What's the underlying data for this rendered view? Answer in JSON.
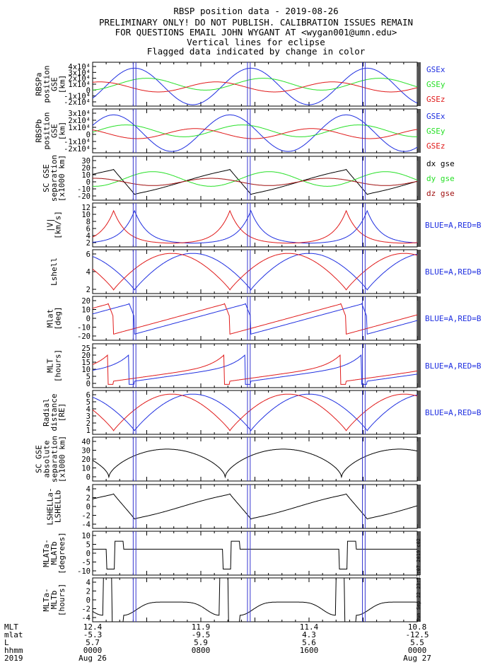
{
  "header": {
    "title": "RBSP position data - 2019-08-26",
    "line2": "PRELIMINARY ONLY! DO NOT PUBLISH. CALIBRATION ISSUES REMAIN",
    "line3": "FOR QUESTIONS EMAIL JOHN WYGANT AT <wygan001@umn.edu>",
    "line4": "Vertical lines for eclipse",
    "line5": "Flagged data indicated by change in color"
  },
  "colors": {
    "blue": "#1f2fe0",
    "red": "#e01a1a",
    "green": "#27e027",
    "black": "#000000",
    "darkred": "#a01010",
    "eclipse": "#3535d0"
  },
  "eclipse_hours": [
    [
      3.0,
      3.2
    ],
    [
      11.45,
      11.65
    ],
    [
      19.95,
      20.15
    ]
  ],
  "stamp": "Sun Sep 22 23:33:07 2019 c02",
  "chart_data": [
    {
      "type": "line",
      "ylabel": [
        "RBSPa",
        "position",
        "GSE",
        "[km]"
      ],
      "yticks_labels": [
        "4x10⁴",
        "3x10⁴",
        "2x10⁴",
        "1x10⁴",
        "0",
        "-1x10⁴",
        "-2x10⁴"
      ],
      "series": [
        {
          "name": "GSEx",
          "color": "blue"
        },
        {
          "name": "GSEy",
          "color": "green"
        },
        {
          "name": "GSEz",
          "color": "red"
        }
      ]
    },
    {
      "type": "line",
      "ylabel": [
        "RBSPb",
        "position",
        "GSE",
        "[km]"
      ],
      "yticks_labels": [
        "3x10⁴",
        "2x10⁴",
        "1x10⁴",
        "0",
        "-1x10⁴",
        "-2x10⁴"
      ],
      "series": [
        {
          "name": "GSEx",
          "color": "blue"
        },
        {
          "name": "GSEy",
          "color": "green"
        },
        {
          "name": "GSEz",
          "color": "red"
        }
      ]
    },
    {
      "type": "line",
      "ylabel": [
        "SC GSE",
        "separation",
        "[x1000 km]"
      ],
      "yticks_labels": [
        "30",
        "20",
        "10",
        "0",
        "-10",
        "-20"
      ],
      "series": [
        {
          "name": "dx gse",
          "color": "black"
        },
        {
          "name": "dy gse",
          "color": "green"
        },
        {
          "name": "dz gse",
          "color": "darkred"
        }
      ]
    },
    {
      "type": "line",
      "ylabel": [
        "|V|",
        "[km/s]"
      ],
      "yticks_labels": [
        "12",
        "10",
        "8",
        "6",
        "4",
        "2"
      ],
      "legend": "BLUE=A,RED=B"
    },
    {
      "type": "line",
      "ylabel": [
        "Lshell"
      ],
      "yticks_labels": [
        "6",
        "4",
        "2"
      ],
      "legend": "BLUE=A,RED=B"
    },
    {
      "type": "line",
      "ylabel": [
        "Mlat",
        "[deg]"
      ],
      "yticks_labels": [
        "20",
        "10",
        "0",
        "-10",
        "-20"
      ],
      "legend": "BLUE=A,RED=B"
    },
    {
      "type": "line",
      "ylabel": [
        "MLT",
        "[hours]"
      ],
      "yticks_labels": [
        "25",
        "20",
        "15",
        "10",
        "5",
        "0"
      ],
      "legend": "BLUE=A,RED=B"
    },
    {
      "type": "line",
      "ylabel": [
        "Radial",
        "distance",
        "[RE]"
      ],
      "yticks_labels": [
        "6",
        "5",
        "4",
        "3",
        "2",
        "1"
      ],
      "legend": "BLUE=A,RED=B"
    },
    {
      "type": "line",
      "ylabel": [
        "SC GSE",
        "absolute",
        "separation",
        "[x1000 km]"
      ],
      "yticks_labels": [
        "40",
        "30",
        "20",
        "10",
        "0"
      ]
    },
    {
      "type": "line",
      "ylabel": [
        "LSHELLa-",
        "LSHELLb"
      ],
      "yticks_labels": [
        "4",
        "2",
        "0",
        "-2",
        "-4"
      ]
    },
    {
      "type": "line",
      "ylabel": [
        "MLATa-",
        "MLATb",
        "[degrees]"
      ],
      "yticks_labels": [
        "10",
        "5",
        "0",
        "-5",
        "-10"
      ]
    },
    {
      "type": "line",
      "ylabel": [
        "MLTa-",
        "MLTb",
        "[hours]"
      ],
      "yticks_labels": [
        "4",
        "2",
        "0",
        "-2",
        "-4"
      ]
    }
  ],
  "footer": {
    "labels": [
      "MLT",
      "mlat",
      "L",
      "hhmm",
      "2019"
    ],
    "columns": [
      [
        "12.4",
        "-5.3",
        "5.7",
        "0000",
        "Aug 26"
      ],
      [
        "11.9",
        "-9.5",
        "5.9",
        "0800",
        ""
      ],
      [
        "11.4",
        "4.3",
        "5.6",
        "1600",
        ""
      ],
      [
        "10.8",
        "-12.5",
        "5.5",
        "0000",
        "Aug 27"
      ]
    ]
  }
}
